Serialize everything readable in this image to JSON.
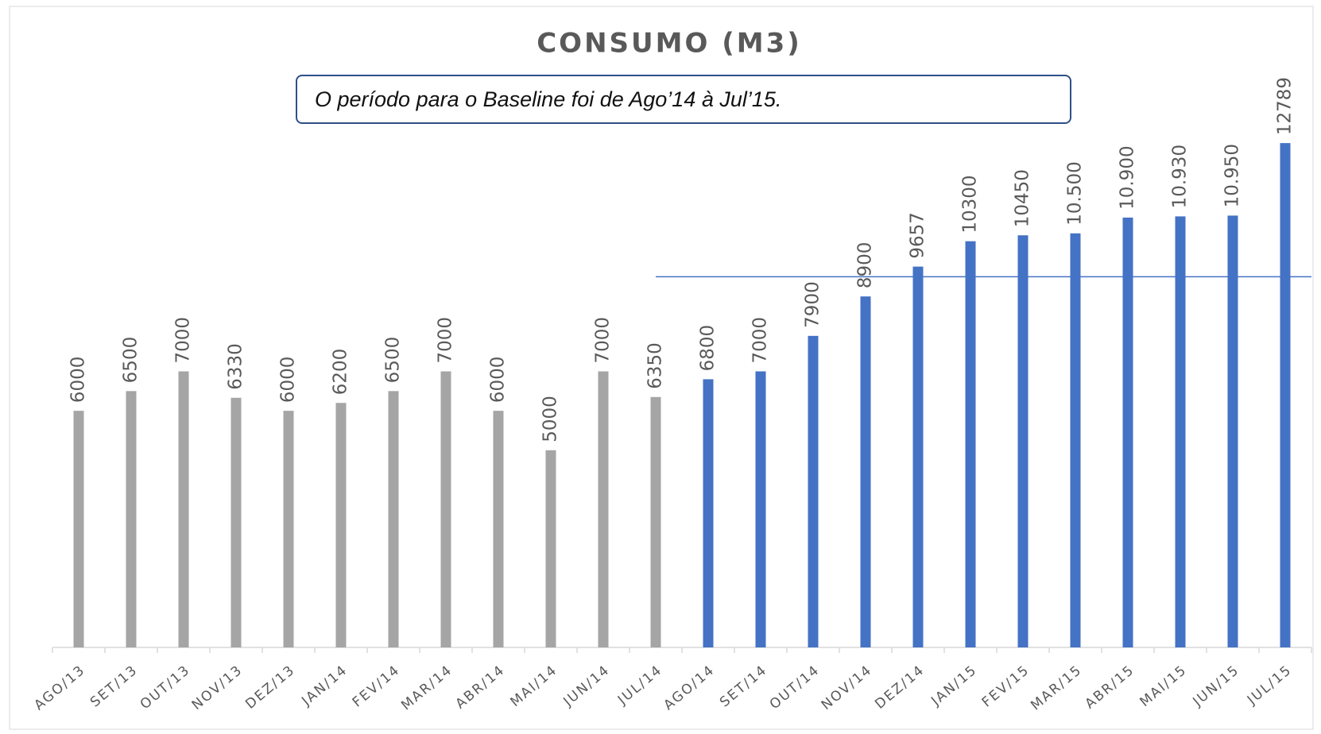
{
  "chart_data": {
    "type": "bar",
    "title": "CONSUMO (M3)",
    "annotation": "O período para o Baseline foi de Ago’14 à Jul’15.",
    "categories": [
      "AGO/13",
      "SET/13",
      "OUT/13",
      "NOV/13",
      "DEZ/13",
      "JAN/14",
      "FEV/14",
      "MAR/14",
      "ABR/14",
      "MAI/14",
      "JUN/14",
      "JUL/14",
      "AGO/14",
      "SET/14",
      "OUT/14",
      "NOV/14",
      "DEZ/14",
      "JAN/15",
      "FEV/15",
      "MAR/15",
      "ABR/15",
      "MAI/15",
      "JUN/15",
      "JUL/15"
    ],
    "values": [
      6000,
      6500,
      7000,
      6330,
      6000,
      6200,
      6500,
      7000,
      6000,
      5000,
      7000,
      6350,
      6800,
      7000,
      7900,
      8900,
      9657,
      10300,
      10450,
      10500,
      10900,
      10930,
      10950,
      12789
    ],
    "value_labels": [
      "6000",
      "6500",
      "7000",
      "6330",
      "6000",
      "6200",
      "6500",
      "7000",
      "6000",
      "5000",
      "7000",
      "6350",
      "6800",
      "7000",
      "7900",
      "8900",
      "9657",
      "10300",
      "10450",
      "10.500",
      "10.900",
      "10.930",
      "10.950",
      "12789"
    ],
    "colors": [
      "#a5a5a5",
      "#a5a5a5",
      "#a5a5a5",
      "#a5a5a5",
      "#a5a5a5",
      "#a5a5a5",
      "#a5a5a5",
      "#a5a5a5",
      "#a5a5a5",
      "#a5a5a5",
      "#a5a5a5",
      "#a5a5a5",
      "#4472c4",
      "#4472c4",
      "#4472c4",
      "#4472c4",
      "#4472c4",
      "#4472c4",
      "#4472c4",
      "#4472c4",
      "#4472c4",
      "#4472c4",
      "#4472c4",
      "#4472c4"
    ],
    "baseline_line": 9400,
    "baseline_line_color": "#4472c4",
    "ylim": [
      0,
      14000
    ],
    "grid": false
  }
}
